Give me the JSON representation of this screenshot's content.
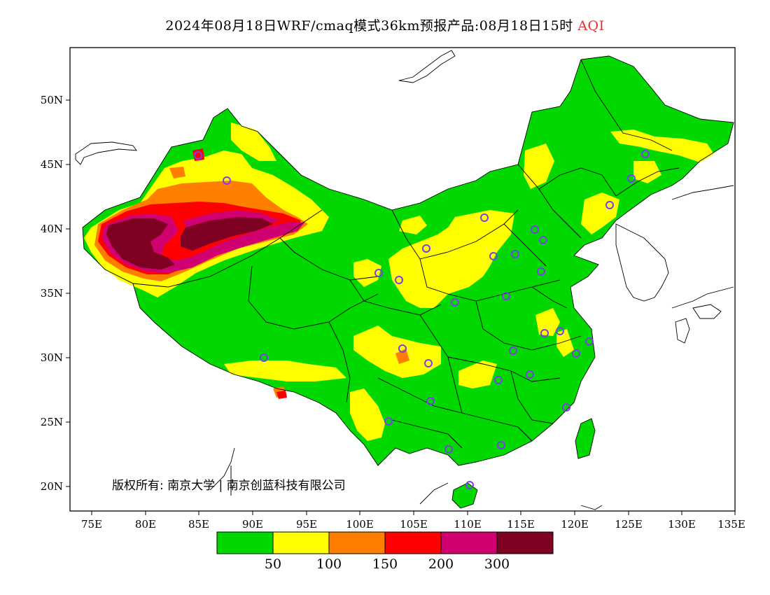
{
  "title": {
    "main": "2024年08月18日WRF/cmaq模式36km预报产品:08月18日15时",
    "highlight": "AQI"
  },
  "map": {
    "lon_labels": [
      "75E",
      "80E",
      "85E",
      "90E",
      "95E",
      "100E",
      "105E",
      "110E",
      "115E",
      "120E",
      "125E",
      "130E",
      "135E"
    ],
    "lat_labels": [
      "20N",
      "25N",
      "30N",
      "35N",
      "40N",
      "45N",
      "50N"
    ],
    "colors": {
      "green": "#00d800",
      "yellow": "#ffff00",
      "orange": "#ff7e00",
      "red": "#ff0000",
      "magenta": "#d00070",
      "maroon": "#7e0023"
    }
  },
  "colorbar": {
    "labels": [
      "50",
      "100",
      "150",
      "200",
      "300"
    ],
    "colors": [
      "#00d800",
      "#ffff00",
      "#ff7e00",
      "#ff0000",
      "#d00070",
      "#7e0023"
    ]
  },
  "copyright": "版权所有: 南京大学 | 南京创蓝科技有限公司"
}
